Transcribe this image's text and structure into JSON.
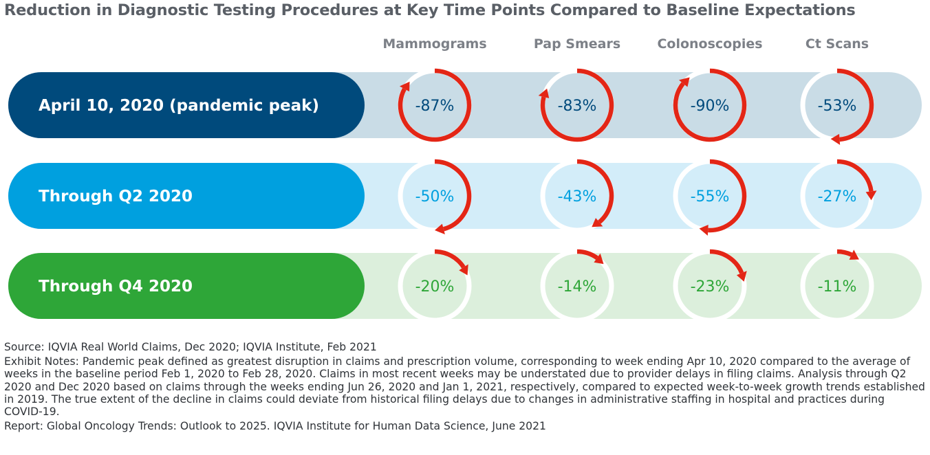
{
  "chart_data": {
    "type": "table",
    "title": "Reduction in Diagnostic Testing Procedures at Key Time Points Compared to Baseline Expectations",
    "columns": [
      "Mammograms",
      "Pap Smears",
      "Colonoscopies",
      "Ct Scans"
    ],
    "unit": "percent change vs baseline",
    "rows": [
      {
        "label": "April 10, 2020 (pandemic peak)",
        "values": [
          -87,
          -83,
          -90,
          -53
        ]
      },
      {
        "label": "Through Q2 2020",
        "values": [
          -50,
          -43,
          -55,
          -27
        ]
      },
      {
        "label": "Through Q4 2020",
        "values": [
          -20,
          -14,
          -23,
          -11
        ]
      }
    ]
  },
  "colors": {
    "row_dark": [
      "#004a7c",
      "#00a0df",
      "#2ea638"
    ],
    "row_light": [
      "#c9dce6",
      "#d3edf9",
      "#dcefdc"
    ],
    "value_text": [
      "#004a7c",
      "#00a0df",
      "#2ea638"
    ],
    "arc": "#e32616",
    "ring": "#ffffff",
    "column_header": "#7c8087",
    "title": "#5a5f66"
  },
  "notes": {
    "source": "Source: IQVIA Real World Claims, Dec 2020; IQVIA Institute, Feb 2021",
    "exhibit": "Exhibit Notes: Pandemic peak defined as greatest disruption in claims and prescription volume, corresponding to week ending Apr 10, 2020 compared to the average of weeks in the baseline period Feb 1, 2020 to Feb 28, 2020. Claims in most recent weeks may be understated due to provider delays in filing claims. Analysis through Q2 2020 and Dec 2020 based on claims through the weeks ending Jun 26, 2020 and Jan 1, 2021, respectively, compared to expected week-to-week growth trends established in 2019. The true extent of the decline in claims could deviate from historical filing delays due to changes in administrative staffing in hospital and practices during COVID-19.",
    "report": "Report: Global Oncology Trends: Outlook to 2025. IQVIA Institute for Human Data Science, June 2021"
  }
}
